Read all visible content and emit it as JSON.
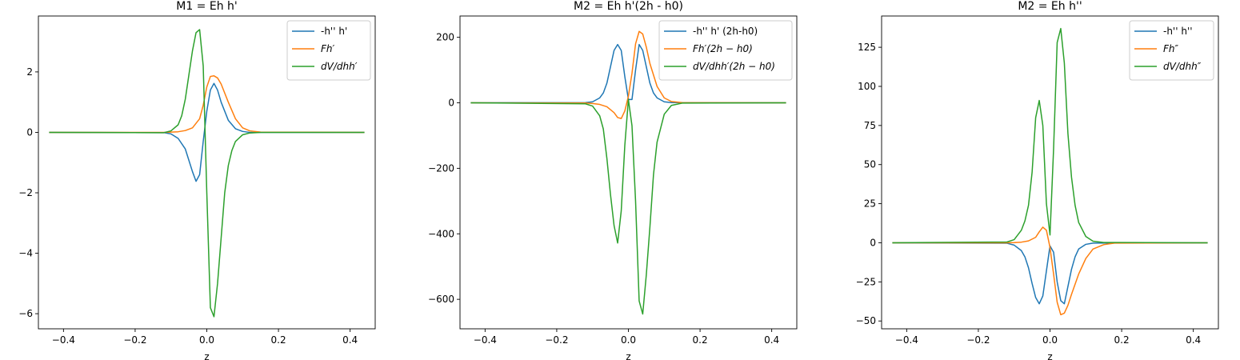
{
  "chart_data": [
    {
      "type": "line",
      "title": "M1 = Eh h'",
      "xlabel": "z",
      "ylabel": "",
      "xlim": [
        -0.47,
        0.47
      ],
      "ylim": [
        -6.5,
        3.85
      ],
      "xticks": [
        -0.4,
        -0.2,
        0.0,
        0.2,
        0.4
      ],
      "xtick_labels": [
        "−0.4",
        "−0.2",
        "0.0",
        "0.2",
        "0.4"
      ],
      "yticks": [
        -6,
        -4,
        -2,
        0,
        2
      ],
      "ytick_labels": [
        "−6",
        "−4",
        "−2",
        "0",
        "2"
      ],
      "grid": false,
      "legend_position": "top-right",
      "series": [
        {
          "name": "-h'' h'",
          "italic": false,
          "color": "#1f77b4",
          "x": [
            -0.44,
            -0.12,
            -0.1,
            -0.08,
            -0.06,
            -0.04,
            -0.03,
            -0.02,
            -0.01,
            0.0,
            0.01,
            0.02,
            0.03,
            0.04,
            0.06,
            0.08,
            0.1,
            0.12,
            0.44
          ],
          "y": [
            0,
            -0.01,
            -0.05,
            -0.2,
            -0.55,
            -1.3,
            -1.62,
            -1.4,
            -0.3,
            0.7,
            1.4,
            1.62,
            1.4,
            1.0,
            0.4,
            0.12,
            0.03,
            0.0,
            0
          ]
        },
        {
          "name": "Fh′",
          "italic": true,
          "color": "#ff7f0e",
          "x": [
            -0.44,
            -0.12,
            -0.1,
            -0.08,
            -0.06,
            -0.04,
            -0.02,
            -0.01,
            0.0,
            0.01,
            0.02,
            0.03,
            0.04,
            0.06,
            0.08,
            0.1,
            0.12,
            0.15,
            0.44
          ],
          "y": [
            0,
            0.0,
            0.01,
            0.02,
            0.06,
            0.15,
            0.45,
            0.9,
            1.5,
            1.85,
            1.87,
            1.8,
            1.6,
            1.0,
            0.45,
            0.15,
            0.05,
            0.01,
            0
          ]
        },
        {
          "name": "dV/dhh′",
          "italic": true,
          "color": "#2ca02c",
          "x": [
            -0.44,
            -0.12,
            -0.1,
            -0.08,
            -0.07,
            -0.06,
            -0.05,
            -0.04,
            -0.03,
            -0.02,
            -0.01,
            0.0,
            0.01,
            0.02,
            0.03,
            0.04,
            0.05,
            0.06,
            0.07,
            0.08,
            0.1,
            0.12,
            0.15,
            0.44
          ],
          "y": [
            0,
            -0.01,
            0.05,
            0.25,
            0.55,
            1.1,
            1.9,
            2.7,
            3.3,
            3.4,
            2.2,
            -2.0,
            -5.8,
            -6.1,
            -5.0,
            -3.5,
            -2.0,
            -1.1,
            -0.6,
            -0.3,
            -0.08,
            -0.02,
            0.0,
            0
          ]
        }
      ]
    },
    {
      "type": "line",
      "title": "M2 = Eh h'(2h - h0)",
      "xlabel": "z",
      "ylabel": "",
      "xlim": [
        -0.47,
        0.47
      ],
      "ylim": [
        -690,
        265
      ],
      "xticks": [
        -0.4,
        -0.2,
        0.0,
        0.2,
        0.4
      ],
      "xtick_labels": [
        "−0.4",
        "−0.2",
        "0.0",
        "0.2",
        "0.4"
      ],
      "yticks": [
        -600,
        -400,
        -200,
        0,
        200
      ],
      "ytick_labels": [
        "−600",
        "−400",
        "−200",
        "0",
        "200"
      ],
      "grid": false,
      "legend_position": "top-right",
      "series": [
        {
          "name": "-h'' h' (2h-h0)",
          "italic": false,
          "color": "#1f77b4",
          "x": [
            -0.44,
            -0.12,
            -0.1,
            -0.08,
            -0.07,
            -0.06,
            -0.05,
            -0.04,
            -0.03,
            -0.02,
            -0.01,
            0.0,
            0.01,
            0.02,
            0.03,
            0.04,
            0.05,
            0.06,
            0.07,
            0.08,
            0.1,
            0.12,
            0.44
          ],
          "y": [
            0,
            0.5,
            3,
            15,
            30,
            60,
            110,
            160,
            178,
            160,
            80,
            10,
            10,
            100,
            178,
            160,
            110,
            60,
            30,
            15,
            3,
            0.5,
            0
          ]
        },
        {
          "name": "Fh′(2h − h0)",
          "italic": true,
          "color": "#ff7f0e",
          "x": [
            -0.44,
            -0.12,
            -0.1,
            -0.08,
            -0.06,
            -0.04,
            -0.03,
            -0.02,
            -0.01,
            0.0,
            0.01,
            0.02,
            0.03,
            0.04,
            0.05,
            0.06,
            0.08,
            0.1,
            0.12,
            0.15,
            0.44
          ],
          "y": [
            0,
            -0.5,
            -2,
            -5,
            -12,
            -30,
            -45,
            -48,
            -25,
            20,
            90,
            180,
            218,
            210,
            170,
            120,
            50,
            15,
            4,
            0.5,
            0
          ]
        },
        {
          "name": "dV/dhh′(2h − h0)",
          "italic": true,
          "color": "#2ca02c",
          "x": [
            -0.44,
            -0.12,
            -0.1,
            -0.08,
            -0.07,
            -0.06,
            -0.05,
            -0.04,
            -0.03,
            -0.02,
            -0.01,
            0.0,
            0.01,
            0.02,
            0.03,
            0.04,
            0.05,
            0.06,
            0.07,
            0.08,
            0.1,
            0.12,
            0.15,
            0.44
          ],
          "y": [
            0,
            -3,
            -10,
            -40,
            -80,
            -170,
            -280,
            -375,
            -428,
            -330,
            -130,
            10,
            -70,
            -300,
            -605,
            -645,
            -525,
            -380,
            -220,
            -120,
            -35,
            -8,
            -1,
            0
          ]
        }
      ]
    },
    {
      "type": "line",
      "title": "M2 = Eh h''",
      "xlabel": "z",
      "ylabel": "",
      "xlim": [
        -0.47,
        0.47
      ],
      "ylim": [
        -55,
        145
      ],
      "xticks": [
        -0.4,
        -0.2,
        0.0,
        0.2,
        0.4
      ],
      "xtick_labels": [
        "−0.4",
        "−0.2",
        "0.0",
        "0.2",
        "0.4"
      ],
      "yticks": [
        -50,
        -25,
        0,
        25,
        50,
        75,
        100,
        125
      ],
      "ytick_labels": [
        "−50",
        "−25",
        "0",
        "25",
        "50",
        "75",
        "100",
        "125"
      ],
      "grid": false,
      "legend_position": "top-right",
      "series": [
        {
          "name": "-h'' h''",
          "italic": false,
          "color": "#1f77b4",
          "x": [
            -0.44,
            -0.12,
            -0.1,
            -0.08,
            -0.07,
            -0.06,
            -0.05,
            -0.04,
            -0.03,
            -0.02,
            -0.01,
            0.0,
            0.01,
            0.02,
            0.03,
            0.04,
            0.05,
            0.06,
            0.07,
            0.08,
            0.1,
            0.12,
            0.44
          ],
          "y": [
            0,
            -0.3,
            -1.5,
            -5,
            -9,
            -16,
            -26,
            -35,
            -39,
            -34,
            -18,
            -2,
            -6,
            -25,
            -37,
            -39,
            -28,
            -17,
            -9,
            -4,
            -1,
            -0.2,
            0
          ]
        },
        {
          "name": "Fh″",
          "italic": true,
          "color": "#ff7f0e",
          "x": [
            -0.44,
            -0.12,
            -0.1,
            -0.08,
            -0.06,
            -0.04,
            -0.03,
            -0.02,
            -0.01,
            0.0,
            0.01,
            0.02,
            0.03,
            0.04,
            0.05,
            0.06,
            0.08,
            0.1,
            0.12,
            0.15,
            0.18,
            0.44
          ],
          "y": [
            0,
            0.0,
            0.1,
            0.4,
            1.2,
            3.5,
            7,
            10,
            8,
            -3,
            -20,
            -38,
            -46,
            -45,
            -40,
            -33,
            -20,
            -10,
            -4,
            -1.2,
            -0.2,
            0
          ]
        },
        {
          "name": "dV/dhh″",
          "italic": true,
          "color": "#2ca02c",
          "x": [
            -0.44,
            -0.12,
            -0.1,
            -0.08,
            -0.07,
            -0.06,
            -0.05,
            -0.04,
            -0.03,
            -0.02,
            -0.01,
            0.0,
            0.01,
            0.02,
            0.03,
            0.04,
            0.05,
            0.06,
            0.07,
            0.08,
            0.1,
            0.12,
            0.15,
            0.44
          ],
          "y": [
            0,
            0.5,
            2,
            8,
            14,
            24,
            45,
            80,
            91,
            75,
            25,
            5,
            60,
            128,
            137,
            115,
            70,
            42,
            24,
            13,
            4,
            1,
            0.2,
            0
          ]
        }
      ]
    }
  ]
}
